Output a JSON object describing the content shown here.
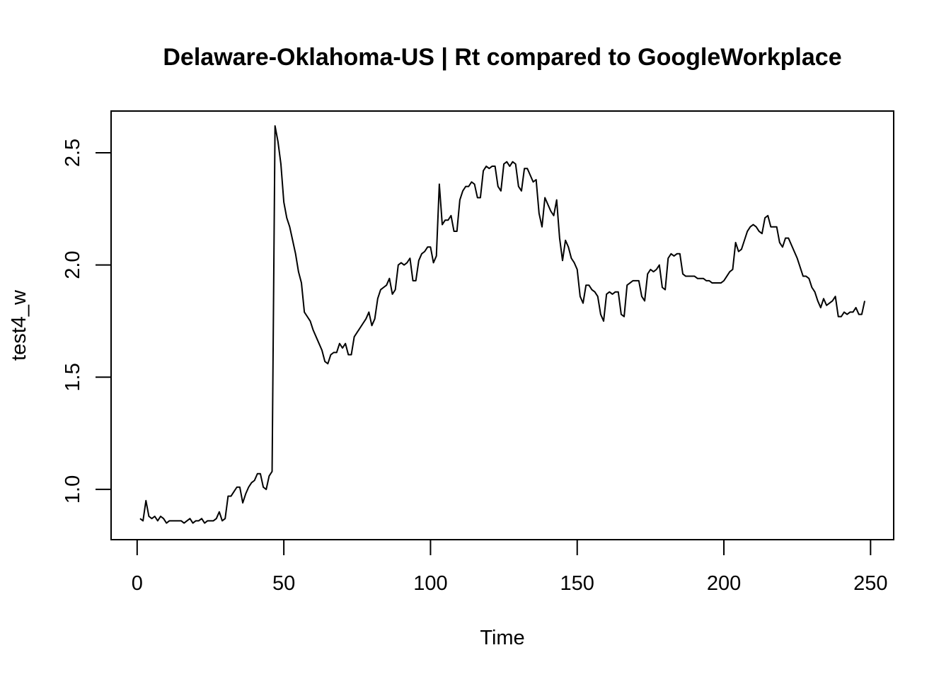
{
  "chart_data": {
    "type": "line",
    "title": "Delaware-Oklahoma-US | Rt compared to GoogleWorkplace",
    "x_label": "Time",
    "y_label": "test4_w",
    "color": "#000000",
    "xlim": [
      -8.88,
      257.88
    ],
    "ylim": [
      0.776,
      2.686
    ],
    "xticks": [
      0,
      50,
      100,
      150,
      200,
      250
    ],
    "yticks": [
      {
        "value": 1,
        "label": "1.0"
      },
      1.5,
      {
        "value": 2,
        "label": "2.0"
      },
      2.5
    ],
    "x": [
      1,
      2,
      3,
      4,
      5,
      6,
      7,
      8,
      9,
      10,
      11,
      12,
      13,
      14,
      15,
      16,
      17,
      18,
      19,
      20,
      21,
      22,
      23,
      24,
      25,
      26,
      27,
      28,
      29,
      30,
      31,
      32,
      33,
      34,
      35,
      36,
      37,
      38,
      39,
      40,
      41,
      42,
      43,
      44,
      45,
      46,
      47,
      48,
      49,
      50,
      51,
      52,
      53,
      54,
      55,
      56,
      57,
      58,
      59,
      60,
      61,
      62,
      63,
      64,
      65,
      66,
      67,
      68,
      69,
      70,
      71,
      72,
      73,
      74,
      75,
      76,
      77,
      78,
      79,
      80,
      81,
      82,
      83,
      84,
      85,
      86,
      87,
      88,
      89,
      90,
      91,
      92,
      93,
      94,
      95,
      96,
      97,
      98,
      99,
      100,
      101,
      102,
      103,
      104,
      105,
      106,
      107,
      108,
      109,
      110,
      111,
      112,
      113,
      114,
      115,
      116,
      117,
      118,
      119,
      120,
      121,
      122,
      123,
      124,
      125,
      126,
      127,
      128,
      129,
      130,
      131,
      132,
      133,
      134,
      135,
      136,
      137,
      138,
      139,
      140,
      141,
      142,
      143,
      144,
      145,
      146,
      147,
      148,
      149,
      150,
      151,
      152,
      153,
      154,
      155,
      156,
      157,
      158,
      159,
      160,
      161,
      162,
      163,
      164,
      165,
      166,
      167,
      168,
      169,
      170,
      171,
      172,
      173,
      174,
      175,
      176,
      177,
      178,
      179,
      180,
      181,
      182,
      183,
      184,
      185,
      186,
      187,
      188,
      189,
      190,
      191,
      192,
      193,
      194,
      195,
      196,
      197,
      198,
      199,
      200,
      201,
      202,
      203,
      204,
      205,
      206,
      207,
      208,
      209,
      210,
      211,
      212,
      213,
      214,
      215,
      216,
      217,
      218,
      219,
      220,
      221,
      222,
      223,
      224,
      225,
      226,
      227,
      228,
      229,
      230,
      231,
      232,
      233,
      234,
      235,
      236,
      237,
      238,
      239,
      240,
      241,
      242,
      243,
      244,
      245,
      246,
      247,
      248
    ],
    "values": [
      0.87,
      0.86,
      0.95,
      0.88,
      0.87,
      0.88,
      0.86,
      0.88,
      0.87,
      0.85,
      0.86,
      0.86,
      0.86,
      0.86,
      0.86,
      0.85,
      0.86,
      0.87,
      0.85,
      0.86,
      0.86,
      0.87,
      0.85,
      0.86,
      0.86,
      0.86,
      0.87,
      0.9,
      0.86,
      0.87,
      0.97,
      0.97,
      0.99,
      1.01,
      1.01,
      0.94,
      0.98,
      1.01,
      1.03,
      1.04,
      1.07,
      1.07,
      1.01,
      1.0,
      1.06,
      1.08,
      2.62,
      2.55,
      2.45,
      2.28,
      2.21,
      2.17,
      2.11,
      2.05,
      1.97,
      1.92,
      1.79,
      1.77,
      1.75,
      1.71,
      1.68,
      1.65,
      1.62,
      1.57,
      1.56,
      1.6,
      1.61,
      1.61,
      1.65,
      1.63,
      1.65,
      1.6,
      1.6,
      1.68,
      1.7,
      1.72,
      1.74,
      1.76,
      1.79,
      1.73,
      1.76,
      1.85,
      1.89,
      1.9,
      1.91,
      1.94,
      1.87,
      1.89,
      2.0,
      2.01,
      2.0,
      2.01,
      2.03,
      1.93,
      1.93,
      2.02,
      2.05,
      2.06,
      2.08,
      2.08,
      2.01,
      2.04,
      2.36,
      2.18,
      2.2,
      2.2,
      2.22,
      2.15,
      2.15,
      2.29,
      2.33,
      2.35,
      2.35,
      2.37,
      2.36,
      2.3,
      2.3,
      2.42,
      2.44,
      2.43,
      2.44,
      2.44,
      2.35,
      2.33,
      2.45,
      2.46,
      2.44,
      2.46,
      2.45,
      2.35,
      2.33,
      2.43,
      2.43,
      2.4,
      2.37,
      2.38,
      2.23,
      2.17,
      2.3,
      2.27,
      2.24,
      2.22,
      2.29,
      2.12,
      2.02,
      2.11,
      2.08,
      2.03,
      2.01,
      1.98,
      1.86,
      1.83,
      1.91,
      1.91,
      1.89,
      1.88,
      1.86,
      1.78,
      1.75,
      1.87,
      1.88,
      1.87,
      1.88,
      1.88,
      1.78,
      1.77,
      1.91,
      1.92,
      1.93,
      1.93,
      1.93,
      1.86,
      1.84,
      1.96,
      1.98,
      1.97,
      1.98,
      2.0,
      1.9,
      1.89,
      2.03,
      2.05,
      2.04,
      2.05,
      2.05,
      1.96,
      1.95,
      1.95,
      1.95,
      1.95,
      1.94,
      1.94,
      1.94,
      1.93,
      1.93,
      1.92,
      1.92,
      1.92,
      1.92,
      1.93,
      1.95,
      1.97,
      1.98,
      2.1,
      2.06,
      2.07,
      2.11,
      2.15,
      2.17,
      2.18,
      2.17,
      2.15,
      2.14,
      2.21,
      2.22,
      2.17,
      2.17,
      2.17,
      2.1,
      2.08,
      2.12,
      2.12,
      2.09,
      2.06,
      2.03,
      1.99,
      1.95,
      1.95,
      1.94,
      1.9,
      1.88,
      1.84,
      1.81,
      1.85,
      1.82,
      1.83,
      1.84,
      1.86,
      1.77,
      1.77,
      1.79,
      1.78,
      1.79,
      1.79,
      1.81,
      1.78,
      1.78,
      1.84
    ]
  }
}
